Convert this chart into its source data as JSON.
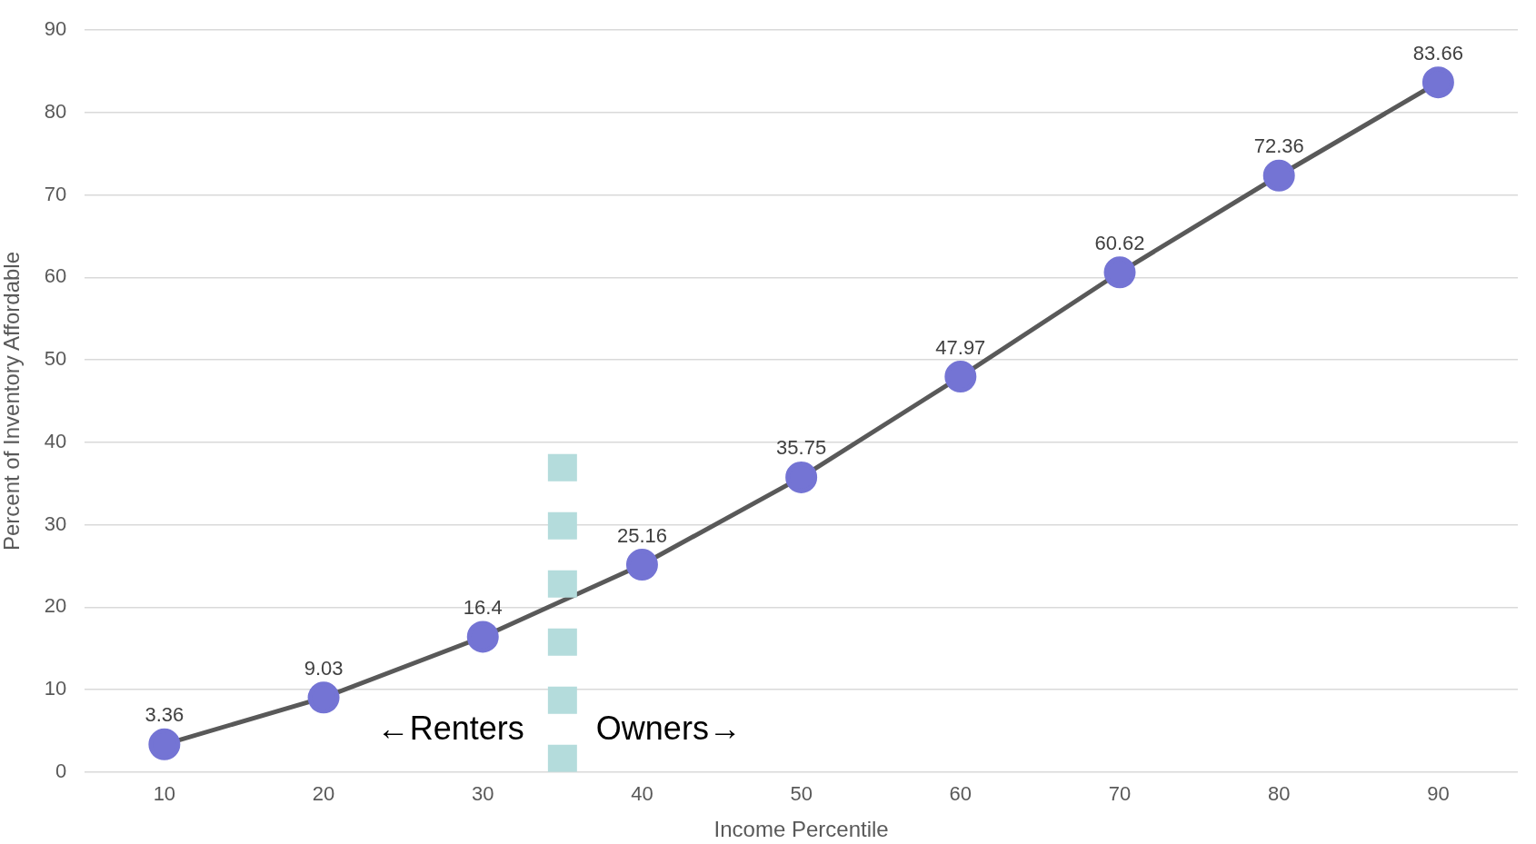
{
  "chart_data": {
    "type": "line",
    "xlabel": "Income Percentile",
    "ylabel": "Percent of Inventory Affordable",
    "xlim": [
      5,
      95
    ],
    "xticks": [
      10,
      20,
      30,
      40,
      50,
      60,
      70,
      80,
      90
    ],
    "ylim": [
      0,
      90
    ],
    "yticks": [
      0,
      10,
      20,
      30,
      40,
      50,
      60,
      70,
      80,
      90
    ],
    "grid": "y",
    "legend": false,
    "series": [
      {
        "x": [
          35,
          35
        ],
        "values": [
          0,
          40
        ],
        "color": "#b4dcdc",
        "line_style": "dashed",
        "marker": "none"
      },
      {
        "x": [
          10,
          20,
          30,
          40,
          50,
          60,
          70,
          80,
          90
        ],
        "values": [
          3.36,
          9.03,
          16.4,
          25.16,
          35.75,
          47.97,
          60.62,
          72.36,
          83.66
        ],
        "color": "#595959",
        "colors": [
          "#7474d4",
          "#7474d4",
          "#7474d4",
          "#7474d4",
          "#7474d4",
          "#7474d4",
          "#7474d4",
          "#7474d4",
          "#7474d4"
        ],
        "line_style": "solid",
        "marker": "circle",
        "value_labels": [
          "3.36",
          "9.03",
          "16.4",
          "25.16",
          "35.75",
          "47.97",
          "60.62",
          "72.36",
          "83.66"
        ]
      }
    ],
    "annotations": [
      "←Renters",
      "Owners→"
    ]
  }
}
